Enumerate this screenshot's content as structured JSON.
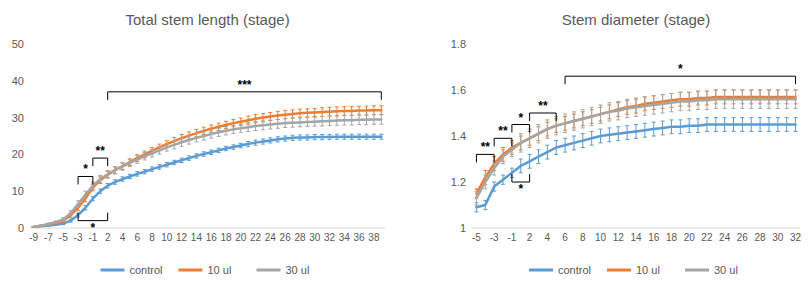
{
  "chart_data": [
    {
      "type": "line",
      "title": "Total stem length (stage)",
      "categories": [
        -9,
        null,
        -7,
        null,
        -5,
        null,
        -3,
        null,
        -1,
        null,
        2,
        null,
        4,
        null,
        6,
        null,
        8,
        null,
        10,
        null,
        12,
        null,
        14,
        null,
        16,
        null,
        18,
        null,
        20,
        null,
        22,
        null,
        24,
        null,
        26,
        null,
        28,
        null,
        30,
        null,
        32,
        null,
        34,
        null,
        36,
        null,
        38,
        null
      ],
      "series": [
        {
          "name": "control",
          "color": "#5b9bd5",
          "values": [
            0.3,
            0.5,
            0.7,
            0.9,
            1.2,
            2,
            3.5,
            5.5,
            8,
            10,
            11.5,
            12.5,
            13.3,
            14,
            14.7,
            15.3,
            16,
            16.6,
            17.2,
            17.8,
            18.4,
            19,
            19.6,
            20.1,
            20.6,
            21.1,
            21.6,
            22,
            22.4,
            22.8,
            23.2,
            23.5,
            23.8,
            24.1,
            24.3,
            24.5,
            24.6,
            24.6,
            24.7,
            24.7,
            24.7,
            24.8,
            24.8,
            24.8,
            24.8,
            24.8,
            24.8,
            24.8
          ],
          "errors": [
            0.1,
            0.1,
            0.2,
            0.2,
            0.3,
            0.4,
            0.5,
            0.6,
            0.6,
            0.6,
            0.6,
            0.6,
            0.6,
            0.6,
            0.6,
            0.6,
            0.6,
            0.6,
            0.6,
            0.6,
            0.6,
            0.6,
            0.6,
            0.6,
            0.6,
            0.6,
            0.6,
            0.6,
            0.6,
            0.7,
            0.7,
            0.7,
            0.7,
            0.7,
            0.7,
            0.7,
            0.7,
            0.7,
            0.7,
            0.7,
            0.7,
            0.7,
            0.7,
            0.7,
            0.7,
            0.7,
            0.7,
            0.7
          ]
        },
        {
          "name": "10 ul",
          "color": "#ed7d31",
          "values": [
            0.3,
            0.6,
            1,
            1.4,
            2,
            3.5,
            5.5,
            8,
            11,
            13,
            14.5,
            15.7,
            16.8,
            17.9,
            19,
            20,
            21,
            21.9,
            22.8,
            23.6,
            24.4,
            25.1,
            25.8,
            26.4,
            27,
            27.5,
            28,
            28.5,
            28.9,
            29.3,
            29.7,
            30,
            30.3,
            30.6,
            30.8,
            31,
            31.2,
            31.3,
            31.4,
            31.5,
            31.6,
            31.7,
            31.8,
            31.8,
            31.9,
            31.9,
            32,
            32
          ],
          "errors": [
            0.1,
            0.2,
            0.2,
            0.3,
            0.4,
            0.6,
            0.8,
            0.9,
            0.9,
            0.9,
            0.9,
            0.9,
            0.9,
            0.9,
            0.9,
            0.9,
            0.9,
            0.9,
            0.9,
            1,
            1,
            1,
            1,
            1,
            1,
            1,
            1,
            1,
            1,
            1.1,
            1.1,
            1.1,
            1.1,
            1.1,
            1.1,
            1.1,
            1.1,
            1.1,
            1.1,
            1.2,
            1.2,
            1.2,
            1.2,
            1.2,
            1.2,
            1.2,
            1.2,
            1.2
          ]
        },
        {
          "name": "30 ul",
          "color": "#a5a5a5",
          "values": [
            0.3,
            0.6,
            1.1,
            1.6,
            2.3,
            4,
            6.5,
            9,
            11.5,
            13.3,
            14.6,
            15.7,
            16.7,
            17.7,
            18.6,
            19.5,
            20.3,
            21.1,
            21.9,
            22.6,
            23.3,
            23.9,
            24.5,
            25,
            25.5,
            26,
            26.4,
            26.8,
            27.1,
            27.4,
            27.7,
            27.9,
            28.1,
            28.3,
            28.5,
            28.6,
            28.7,
            28.8,
            28.9,
            29,
            29.1,
            29.2,
            29.3,
            29.3,
            29.4,
            29.4,
            29.5,
            29.5
          ],
          "errors": [
            0.1,
            0.2,
            0.2,
            0.3,
            0.5,
            0.7,
            0.9,
            1,
            1,
            1,
            1,
            1,
            1,
            1,
            1,
            1,
            1,
            1,
            1,
            1.1,
            1.1,
            1.1,
            1.1,
            1.1,
            1.1,
            1.1,
            1.1,
            1.1,
            1.1,
            1.2,
            1.2,
            1.2,
            1.2,
            1.2,
            1.2,
            1.2,
            1.2,
            1.2,
            1.2,
            1.3,
            1.3,
            1.3,
            1.3,
            1.3,
            1.3,
            1.3,
            1.3,
            1.3
          ]
        }
      ],
      "ylim": [
        0,
        50
      ],
      "yticks": [
        0,
        10,
        20,
        30,
        40,
        50
      ],
      "grid": false,
      "legend": "bottom",
      "annotations": [
        {
          "text": "*",
          "start": 6,
          "end": 8,
          "y": 14,
          "side": "above"
        },
        {
          "text": "**",
          "start": 8,
          "end": 10,
          "y": 19,
          "side": "above"
        },
        {
          "text": "***",
          "start": 10,
          "end": 47,
          "y": 37,
          "side": "above"
        },
        {
          "text": "*",
          "start": 6,
          "end": 10,
          "y": 2,
          "side": "below"
        }
      ]
    },
    {
      "type": "line",
      "title": "Stem diameter (stage)",
      "categories": [
        -5,
        null,
        -3,
        null,
        -1,
        null,
        2,
        null,
        4,
        null,
        6,
        null,
        8,
        null,
        10,
        null,
        12,
        null,
        14,
        null,
        16,
        null,
        18,
        null,
        20,
        null,
        22,
        null,
        24,
        null,
        26,
        null,
        28,
        null,
        30,
        null,
        32
      ],
      "series": [
        {
          "name": "control",
          "color": "#5b9bd5",
          "values": [
            1.09,
            1.1,
            1.18,
            1.21,
            1.24,
            1.27,
            1.29,
            1.31,
            1.33,
            1.35,
            1.36,
            1.37,
            1.38,
            1.39,
            1.4,
            1.405,
            1.41,
            1.415,
            1.42,
            1.425,
            1.43,
            1.435,
            1.44,
            1.44,
            1.445,
            1.445,
            1.45,
            1.45,
            1.45,
            1.45,
            1.45,
            1.45,
            1.45,
            1.45,
            1.45,
            1.45,
            1.45
          ],
          "errors": [
            0.02,
            0.02,
            0.02,
            0.02,
            0.02,
            0.03,
            0.03,
            0.03,
            0.03,
            0.03,
            0.03,
            0.03,
            0.03,
            0.03,
            0.03,
            0.03,
            0.03,
            0.03,
            0.03,
            0.03,
            0.03,
            0.03,
            0.03,
            0.03,
            0.03,
            0.03,
            0.03,
            0.03,
            0.03,
            0.03,
            0.03,
            0.03,
            0.03,
            0.03,
            0.03,
            0.03,
            0.03
          ]
        },
        {
          "name": "10 ul",
          "color": "#ed7d31",
          "values": [
            1.15,
            1.22,
            1.28,
            1.32,
            1.35,
            1.37,
            1.39,
            1.41,
            1.43,
            1.445,
            1.455,
            1.465,
            1.475,
            1.485,
            1.495,
            1.505,
            1.515,
            1.525,
            1.53,
            1.54,
            1.545,
            1.55,
            1.555,
            1.56,
            1.56,
            1.565,
            1.565,
            1.57,
            1.57,
            1.57,
            1.57,
            1.57,
            1.57,
            1.57,
            1.57,
            1.57,
            1.57
          ],
          "errors": [
            0.02,
            0.03,
            0.03,
            0.03,
            0.03,
            0.03,
            0.03,
            0.03,
            0.03,
            0.03,
            0.03,
            0.03,
            0.03,
            0.03,
            0.03,
            0.03,
            0.03,
            0.03,
            0.03,
            0.03,
            0.03,
            0.03,
            0.03,
            0.03,
            0.03,
            0.03,
            0.03,
            0.03,
            0.03,
            0.03,
            0.03,
            0.03,
            0.03,
            0.03,
            0.03,
            0.03,
            0.03
          ]
        },
        {
          "name": "30 ul",
          "color": "#a5a5a5",
          "values": [
            1.13,
            1.2,
            1.26,
            1.31,
            1.34,
            1.37,
            1.39,
            1.41,
            1.43,
            1.445,
            1.455,
            1.465,
            1.475,
            1.485,
            1.495,
            1.505,
            1.51,
            1.52,
            1.525,
            1.53,
            1.535,
            1.54,
            1.545,
            1.55,
            1.55,
            1.555,
            1.555,
            1.56,
            1.56,
            1.56,
            1.56,
            1.56,
            1.56,
            1.56,
            1.56,
            1.56,
            1.56
          ],
          "errors": [
            0.03,
            0.03,
            0.03,
            0.03,
            0.03,
            0.04,
            0.04,
            0.04,
            0.04,
            0.04,
            0.04,
            0.04,
            0.04,
            0.04,
            0.04,
            0.04,
            0.04,
            0.04,
            0.04,
            0.04,
            0.04,
            0.04,
            0.04,
            0.04,
            0.04,
            0.04,
            0.04,
            0.04,
            0.04,
            0.04,
            0.04,
            0.04,
            0.04,
            0.04,
            0.04,
            0.04,
            0.04
          ]
        }
      ],
      "ylim": [
        1,
        1.8
      ],
      "yticks": [
        1,
        1.2,
        1.4,
        1.6,
        1.8
      ],
      "grid": false,
      "legend": "bottom",
      "annotations": [
        {
          "text": "**",
          "start": 0,
          "end": 2,
          "y": 1.32,
          "side": "above"
        },
        {
          "text": "**",
          "start": 2,
          "end": 4,
          "y": 1.39,
          "side": "above"
        },
        {
          "text": "*",
          "start": 4,
          "end": 6,
          "y": 1.45,
          "side": "above"
        },
        {
          "text": "**",
          "start": 6,
          "end": 9,
          "y": 1.5,
          "side": "above"
        },
        {
          "text": "*",
          "start": 10,
          "end": 36,
          "y": 1.66,
          "side": "above"
        },
        {
          "text": "*",
          "start": 4,
          "end": 6,
          "y": 1.2,
          "side": "below"
        }
      ]
    }
  ]
}
